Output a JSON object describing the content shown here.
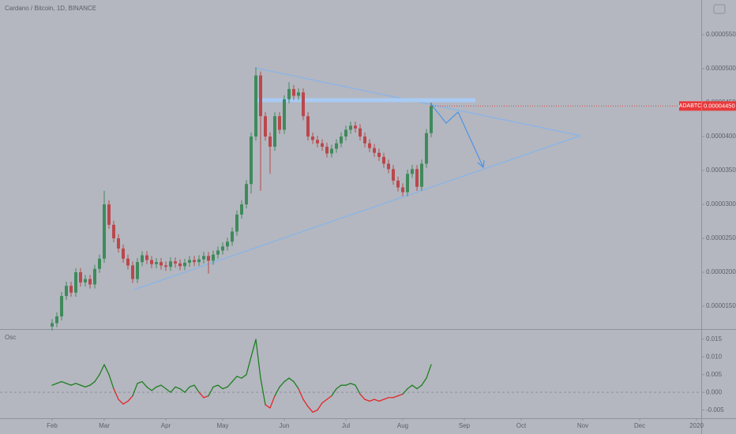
{
  "chart_data": {
    "type": "candlestick",
    "title": "Cardano / Bitcoin, 1D, BINANCE",
    "x": [
      0,
      1,
      2,
      3,
      4,
      5,
      6,
      7,
      8,
      9,
      10,
      11,
      12,
      13,
      14,
      15,
      16,
      17,
      18,
      19,
      20,
      21,
      22,
      23,
      24,
      25,
      26,
      27,
      28,
      29,
      30,
      31,
      32,
      33,
      34,
      35,
      36,
      37,
      38,
      39,
      40,
      41,
      42,
      43,
      44,
      45,
      46,
      47,
      48,
      49,
      50,
      51,
      52,
      53,
      54,
      55,
      56,
      57,
      58,
      59,
      60,
      61,
      62,
      63,
      64,
      65,
      66,
      67,
      68,
      69,
      70,
      71,
      72,
      73,
      74,
      75,
      76,
      77,
      78,
      79,
      80
    ],
    "open": [
      1.2e-05,
      1.25e-05,
      1.35e-05,
      1.65e-05,
      1.8e-05,
      1.7e-05,
      2e-05,
      1.85e-05,
      1.9e-05,
      1.82e-05,
      2.05e-05,
      2.2e-05,
      3e-05,
      2.7e-05,
      2.5e-05,
      2.35e-05,
      2.2e-05,
      2.1e-05,
      1.9e-05,
      2.15e-05,
      2.25e-05,
      2.18e-05,
      2.12e-05,
      2.15e-05,
      2.1e-05,
      2.08e-05,
      2.16e-05,
      2.13e-05,
      2.09e-05,
      2.14e-05,
      2.18e-05,
      2.15e-05,
      2.19e-05,
      2.24e-05,
      2.17e-05,
      2.26e-05,
      2.32e-05,
      2.38e-05,
      2.45e-05,
      2.6e-05,
      2.85e-05,
      3e-05,
      3.3e-05,
      4e-05,
      4.9e-05,
      4.3e-05,
      4e-05,
      3.85e-05,
      4.3e-05,
      4.1e-05,
      4.55e-05,
      4.7e-05,
      4.6e-05,
      4.65e-05,
      4.3e-05,
      4e-05,
      3.95e-05,
      3.9e-05,
      3.85e-05,
      3.75e-05,
      3.82e-05,
      3.9e-05,
      4e-05,
      4.1e-05,
      4.16e-05,
      4.12e-05,
      4e-05,
      3.9e-05,
      3.83e-05,
      3.76e-05,
      3.7e-05,
      3.6e-05,
      3.52e-05,
      3.35e-05,
      3.25e-05,
      3.18e-05,
      3.45e-05,
      3.52e-05,
      3.26e-05,
      3.6e-05,
      4.05e-05
    ],
    "high": [
      1.31e-05,
      1.41e-05,
      1.71e-05,
      1.86e-05,
      1.86e-05,
      2.06e-05,
      2.06e-05,
      1.96e-05,
      1.96e-05,
      2.11e-05,
      2.26e-05,
      3.2e-05,
      3.06e-05,
      2.76e-05,
      2.56e-05,
      2.41e-05,
      2.26e-05,
      2.16e-05,
      2.21e-05,
      2.31e-05,
      2.31e-05,
      2.24e-05,
      2.21e-05,
      2.21e-05,
      2.16e-05,
      2.22e-05,
      2.22e-05,
      2.19e-05,
      2.2e-05,
      2.24e-05,
      2.24e-05,
      2.25e-05,
      2.3e-05,
      2.3e-05,
      2.32e-05,
      2.38e-05,
      2.44e-05,
      2.51e-05,
      2.66e-05,
      2.91e-05,
      3.06e-05,
      3.36e-05,
      4.06e-05,
      5.02e-05,
      4.96e-05,
      4.36e-05,
      4.06e-05,
      4.36e-05,
      4.36e-05,
      4.61e-05,
      4.8e-05,
      4.76e-05,
      4.71e-05,
      4.71e-05,
      4.36e-05,
      4.06e-05,
      4.01e-05,
      3.96e-05,
      3.91e-05,
      3.88e-05,
      3.96e-05,
      4.06e-05,
      4.16e-05,
      4.22e-05,
      4.22e-05,
      4.18e-05,
      4.06e-05,
      3.96e-05,
      3.89e-05,
      3.82e-05,
      3.76e-05,
      3.66e-05,
      3.58e-05,
      3.41e-05,
      3.31e-05,
      3.51e-05,
      3.58e-05,
      3.58e-05,
      3.66e-05,
      4.11e-05,
      4.5e-05
    ],
    "low": [
      1.14e-05,
      1.19e-05,
      1.29e-05,
      1.59e-05,
      1.64e-05,
      1.64e-05,
      1.79e-05,
      1.79e-05,
      1.76e-05,
      1.76e-05,
      1.99e-05,
      2.14e-05,
      2.64e-05,
      2.44e-05,
      2.29e-05,
      2.14e-05,
      2.04e-05,
      1.84e-05,
      1.84e-05,
      2.09e-05,
      2.12e-05,
      2.06e-05,
      2.06e-05,
      2.04e-05,
      2.02e-05,
      2.02e-05,
      2.07e-05,
      2.03e-05,
      2.03e-05,
      2.08e-05,
      2.09e-05,
      2.09e-05,
      2.13e-05,
      1.98e-05,
      2.11e-05,
      2.2e-05,
      2.26e-05,
      2.32e-05,
      2.39e-05,
      2.54e-05,
      2.79e-05,
      2.94e-05,
      3.16e-05,
      3.94e-05,
      3.2e-05,
      3.94e-05,
      3.45e-05,
      3.79e-05,
      4.04e-05,
      4.04e-05,
      4.49e-05,
      4.54e-05,
      4.54e-05,
      4.24e-05,
      3.94e-05,
      3.89e-05,
      3.84e-05,
      3.79e-05,
      3.69e-05,
      3.69e-05,
      3.76e-05,
      3.84e-05,
      3.94e-05,
      4.04e-05,
      4.06e-05,
      3.94e-05,
      3.84e-05,
      3.77e-05,
      3.7e-05,
      3.64e-05,
      3.54e-05,
      3.46e-05,
      3.29e-05,
      3.19e-05,
      3.12e-05,
      3.12e-05,
      3.39e-05,
      3.2e-05,
      3.2e-05,
      3.54e-05,
      3.99e-05
    ],
    "close": [
      1.25e-05,
      1.35e-05,
      1.65e-05,
      1.8e-05,
      1.7e-05,
      2e-05,
      1.85e-05,
      1.9e-05,
      1.82e-05,
      2.05e-05,
      2.2e-05,
      3e-05,
      2.7e-05,
      2.5e-05,
      2.35e-05,
      2.2e-05,
      2.1e-05,
      1.9e-05,
      2.15e-05,
      2.25e-05,
      2.18e-05,
      2.12e-05,
      2.15e-05,
      2.1e-05,
      2.08e-05,
      2.16e-05,
      2.13e-05,
      2.09e-05,
      2.14e-05,
      2.18e-05,
      2.15e-05,
      2.19e-05,
      2.24e-05,
      2.17e-05,
      2.26e-05,
      2.32e-05,
      2.38e-05,
      2.45e-05,
      2.6e-05,
      2.85e-05,
      3e-05,
      3.3e-05,
      4e-05,
      4.9e-05,
      4.3e-05,
      4e-05,
      3.85e-05,
      4.3e-05,
      4.1e-05,
      4.55e-05,
      4.7e-05,
      4.6e-05,
      4.65e-05,
      4.3e-05,
      4e-05,
      3.95e-05,
      3.9e-05,
      3.85e-05,
      3.75e-05,
      3.82e-05,
      3.9e-05,
      4e-05,
      4.1e-05,
      4.16e-05,
      4.12e-05,
      4e-05,
      3.9e-05,
      3.83e-05,
      3.76e-05,
      3.7e-05,
      3.6e-05,
      3.52e-05,
      3.35e-05,
      3.25e-05,
      3.18e-05,
      3.45e-05,
      3.52e-05,
      3.26e-05,
      3.6e-05,
      4.05e-05,
      4.45e-05
    ],
    "up_color": "#3f8a5c",
    "down_color": "#b9484c",
    "xlim": [
      -11,
      137
    ],
    "xticks": [
      {
        "value": 0,
        "label": "Feb"
      },
      {
        "value": 11,
        "label": "Mar"
      },
      {
        "value": 24,
        "label": "Apr"
      },
      {
        "value": 36,
        "label": "May"
      },
      {
        "value": 49,
        "label": "Jun"
      },
      {
        "value": 62,
        "label": "Jul"
      },
      {
        "value": 74,
        "label": "Aug"
      },
      {
        "value": 87,
        "label": "Sep"
      },
      {
        "value": 99,
        "label": "Oct"
      },
      {
        "value": 112,
        "label": "Nov"
      },
      {
        "value": 124,
        "label": "Dec"
      },
      {
        "value": 136,
        "label": "2020"
      }
    ],
    "ylim": [
      1.163e-05,
      6.012e-05
    ],
    "yticks": [
      {
        "value": 1.5e-05,
        "label": "0.00001500"
      },
      {
        "value": 2e-05,
        "label": "0.00002000"
      },
      {
        "value": 2.5e-05,
        "label": "0.00002500"
      },
      {
        "value": 3e-05,
        "label": "0.00003000"
      },
      {
        "value": 3.5e-05,
        "label": "0.00003500"
      },
      {
        "value": 4e-05,
        "label": "0.00004000"
      },
      {
        "value": 4.5e-05,
        "label": "0.00004500"
      },
      {
        "value": 5e-05,
        "label": "0.00005000"
      },
      {
        "value": 5.5e-05,
        "label": "0.00005500"
      }
    ],
    "last_price": {
      "symbol": "ADABTC",
      "value": 4.45e-05,
      "label": "0.00004450",
      "color": "#e8393b"
    },
    "indicator": {
      "type": "line",
      "name": "Osc",
      "values": [
        0.002,
        0.0025,
        0.003,
        0.0025,
        0.002,
        0.0025,
        0.002,
        0.0015,
        0.002,
        0.003,
        0.005,
        0.0078,
        0.005,
        0.001,
        -0.002,
        -0.0033,
        -0.0025,
        -0.001,
        0.0025,
        0.003,
        0.0015,
        0.0005,
        0.0015,
        0.002,
        0.001,
        0,
        0.0015,
        0.001,
        0,
        0.0015,
        0.002,
        0,
        -0.0015,
        -0.001,
        0.0015,
        0.002,
        0.001,
        0.0015,
        0.003,
        0.0045,
        0.004,
        0.005,
        0.01,
        0.0149,
        0.004,
        -0.0035,
        -0.0044,
        -0.001,
        0.0015,
        0.003,
        0.004,
        0.003,
        0.001,
        -0.002,
        -0.004,
        -0.0056,
        -0.005,
        -0.003,
        -0.002,
        -0.001,
        0.001,
        0.002,
        0.002,
        0.0025,
        0.002,
        -0.0005,
        -0.002,
        -0.0025,
        -0.002,
        -0.0025,
        -0.002,
        -0.0015,
        -0.0015,
        -0.001,
        -0.0005,
        0.001,
        0.002,
        0.001,
        0.002,
        0.004,
        0.0078
      ],
      "positive_color": "#1f7f22",
      "negative_color": "#e0282a",
      "zero_line": true,
      "ylim": [
        -0.0073,
        0.0176
      ],
      "yticks": [
        -0.005,
        {
          "value": 0,
          "label": "0.000"
        },
        0.005,
        {
          "value": 0.01,
          "label": "0.010"
        },
        0.015
      ]
    }
  }
}
